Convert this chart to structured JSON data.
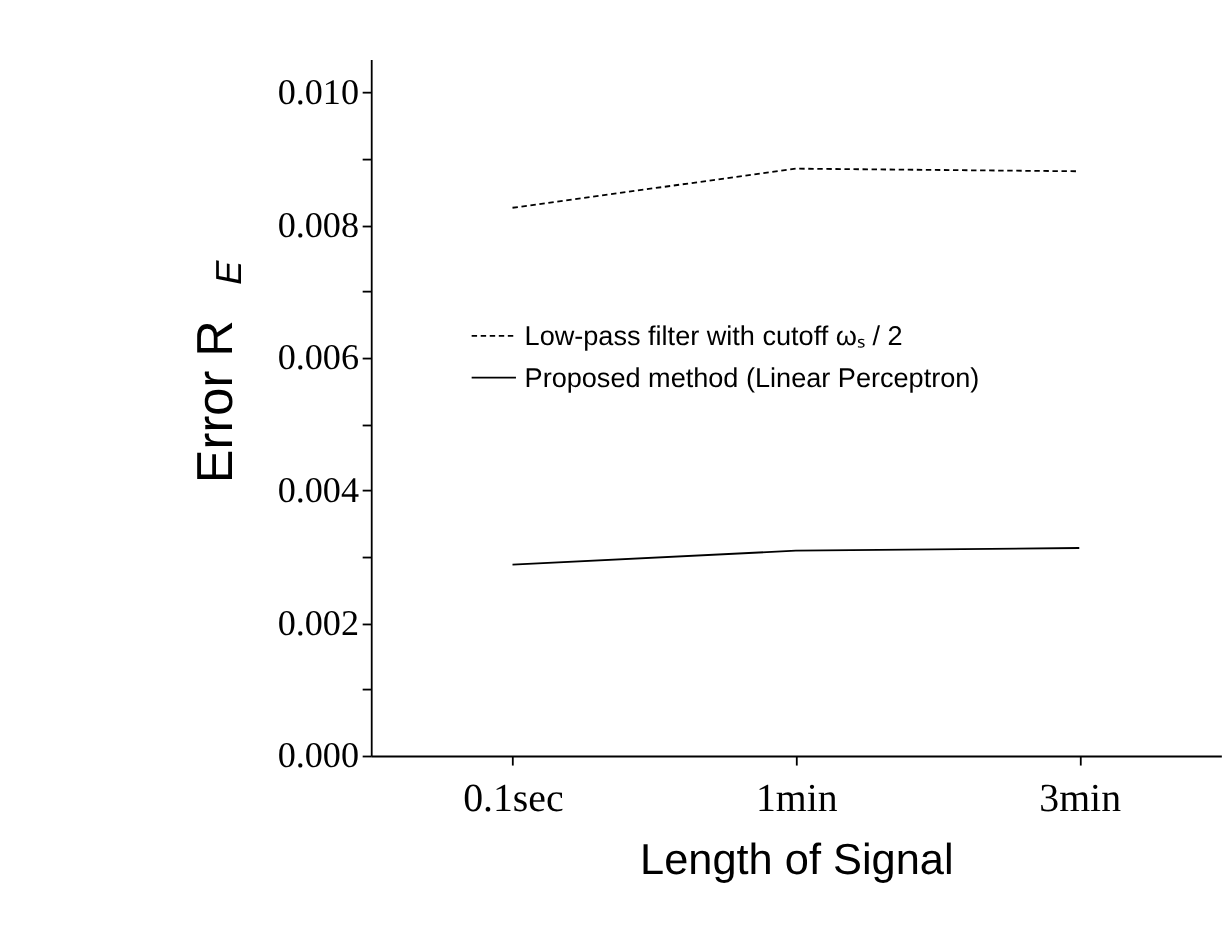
{
  "chart_data": {
    "type": "line",
    "xlabel": "Length of Signal",
    "ylabel": "Error R$_{E}$",
    "categories": [
      "0.1sec",
      "1min",
      "3min"
    ],
    "series": [
      {
        "name": "Low-pass filter with cutoff ωₛ / 2",
        "color": "#000000",
        "line_style": "dashed",
        "values": [
          0.00826,
          0.00885,
          0.00881
        ]
      },
      {
        "name": "Proposed method (Linear Perceptron)",
        "color": "#000000",
        "line_style": "solid",
        "values": [
          0.00288,
          0.00309,
          0.00313
        ]
      }
    ],
    "ylim": [
      0,
      0.0105
    ],
    "yticks": [
      {
        "value": 0,
        "label": "0.000"
      },
      {
        "value": 0.001,
        "label": null
      },
      {
        "value": 0.002,
        "label": "0.002"
      },
      {
        "value": 0.003,
        "label": null
      },
      {
        "value": 0.004,
        "label": "0.004"
      },
      {
        "value": 0.005,
        "label": null
      },
      {
        "value": 0.006,
        "label": "0.006"
      },
      {
        "value": 0.007,
        "label": null
      },
      {
        "value": 0.008,
        "label": "0.008"
      },
      {
        "value": 0.009,
        "label": null
      },
      {
        "value": 0.01,
        "label": "0.010"
      }
    ],
    "grid": false,
    "legend": "top",
    "marker": "none"
  }
}
